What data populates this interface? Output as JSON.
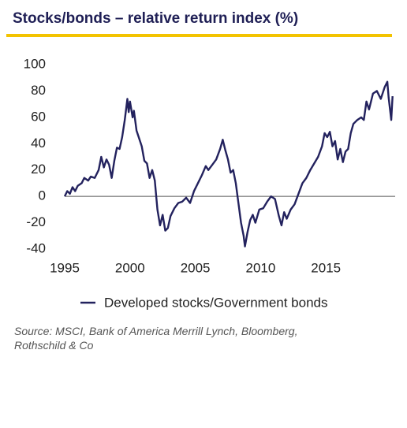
{
  "chart_data": {
    "type": "line",
    "title": "Stocks/bonds – relative return index (%)",
    "source": "Source: MSCI, Bank of America Merrill Lynch, Bloomberg, Rothschild & Co",
    "x": [
      1995.0,
      1995.2,
      1995.4,
      1995.6,
      1995.8,
      1996.0,
      1996.3,
      1996.5,
      1996.8,
      1997.0,
      1997.3,
      1997.6,
      1997.8,
      1998.0,
      1998.2,
      1998.4,
      1998.6,
      1998.8,
      1999.0,
      1999.2,
      1999.4,
      1999.6,
      1999.8,
      1999.9,
      2000.0,
      2000.2,
      2000.3,
      2000.5,
      2000.7,
      2000.9,
      2001.1,
      2001.3,
      2001.5,
      2001.7,
      2001.9,
      2002.1,
      2002.3,
      2002.5,
      2002.7,
      2002.9,
      2003.1,
      2003.4,
      2003.7,
      2004.0,
      2004.3,
      2004.6,
      2004.9,
      2005.2,
      2005.5,
      2005.8,
      2006.0,
      2006.3,
      2006.6,
      2006.9,
      2007.1,
      2007.3,
      2007.5,
      2007.7,
      2007.9,
      2008.1,
      2008.3,
      2008.5,
      2008.7,
      2008.8,
      2009.0,
      2009.2,
      2009.4,
      2009.6,
      2009.9,
      2010.2,
      2010.5,
      2010.8,
      2011.1,
      2011.4,
      2011.6,
      2011.8,
      2012.0,
      2012.3,
      2012.6,
      2012.9,
      2013.2,
      2013.5,
      2013.8,
      2014.1,
      2014.4,
      2014.7,
      2014.9,
      2015.1,
      2015.3,
      2015.5,
      2015.7,
      2015.9,
      2016.1,
      2016.3,
      2016.5,
      2016.7,
      2016.9,
      2017.1,
      2017.4,
      2017.7,
      2017.9,
      2018.1,
      2018.3,
      2018.6,
      2018.9,
      2019.2,
      2019.5,
      2019.7,
      2019.8,
      2020.0,
      2020.1
    ],
    "series": [
      {
        "name": "Developed stocks/Government bonds",
        "color": "#23225e",
        "values": [
          0,
          4,
          2,
          7,
          4,
          8,
          10,
          14,
          12,
          15,
          14,
          20,
          30,
          22,
          28,
          24,
          14,
          27,
          37,
          36,
          45,
          58,
          74,
          64,
          72,
          60,
          65,
          50,
          44,
          38,
          27,
          25,
          14,
          20,
          12,
          -10,
          -22,
          -14,
          -26,
          -24,
          -15,
          -9,
          -5,
          -4,
          -1,
          -5,
          4,
          10,
          16,
          23,
          20,
          24,
          28,
          36,
          43,
          35,
          28,
          18,
          20,
          10,
          -5,
          -20,
          -30,
          -38,
          -27,
          -18,
          -14,
          -20,
          -10,
          -9,
          -4,
          0,
          -2,
          -15,
          -22,
          -12,
          -17,
          -10,
          -6,
          2,
          10,
          14,
          20,
          25,
          30,
          38,
          48,
          45,
          49,
          38,
          42,
          28,
          36,
          26,
          34,
          36,
          48,
          55,
          58,
          60,
          58,
          72,
          66,
          78,
          80,
          74,
          83,
          87,
          75,
          58,
          76
        ]
      }
    ],
    "xlim": [
      1995,
      2020.3
    ],
    "xticks": [
      1995,
      2000,
      2005,
      2010,
      2015
    ],
    "ylim": [
      -40,
      100
    ],
    "yticks": [
      -40,
      -20,
      0,
      20,
      40,
      60,
      80,
      100
    ],
    "grid": false
  }
}
